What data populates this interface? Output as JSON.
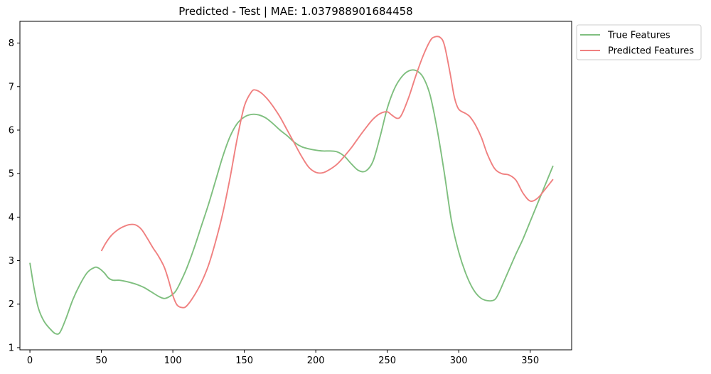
{
  "chart_data": {
    "type": "line",
    "title": "Predicted - Test | MAE: 1.037988901684458",
    "xlabel": "",
    "ylabel": "",
    "xlim": [
      -7,
      379
    ],
    "ylim": [
      0.95,
      8.5
    ],
    "xticks": [
      0,
      50,
      100,
      150,
      200,
      250,
      300,
      350
    ],
    "yticks": [
      1,
      2,
      3,
      4,
      5,
      6,
      7,
      8
    ],
    "grid": false,
    "legend_position": "outside-top-right",
    "series": [
      {
        "name": "True Features",
        "color": "#7fbf7f",
        "x": [
          0,
          3,
          6,
          10,
          15,
          18,
          21,
          25,
          30,
          35,
          40,
          45,
          48,
          52,
          55,
          58,
          62,
          66,
          70,
          75,
          80,
          85,
          90,
          94,
          98,
          102,
          106,
          110,
          115,
          120,
          125,
          130,
          135,
          140,
          145,
          150,
          155,
          160,
          165,
          170,
          175,
          180,
          185,
          190,
          195,
          200,
          205,
          210,
          215,
          220,
          225,
          230,
          235,
          240,
          245,
          250,
          255,
          260,
          265,
          270,
          275,
          280,
          285,
          290,
          295,
          300,
          305,
          310,
          315,
          320,
          325,
          328,
          332,
          336,
          340,
          345,
          350,
          355,
          360,
          366
        ],
        "values": [
          2.95,
          2.35,
          1.9,
          1.6,
          1.4,
          1.32,
          1.35,
          1.65,
          2.1,
          2.45,
          2.72,
          2.84,
          2.83,
          2.72,
          2.6,
          2.55,
          2.55,
          2.53,
          2.5,
          2.45,
          2.38,
          2.28,
          2.18,
          2.13,
          2.18,
          2.3,
          2.55,
          2.85,
          3.3,
          3.8,
          4.3,
          4.85,
          5.4,
          5.85,
          6.15,
          6.3,
          6.36,
          6.35,
          6.28,
          6.15,
          6.0,
          5.87,
          5.72,
          5.62,
          5.57,
          5.54,
          5.52,
          5.52,
          5.5,
          5.4,
          5.22,
          5.07,
          5.06,
          5.28,
          5.85,
          6.5,
          6.95,
          7.22,
          7.36,
          7.37,
          7.22,
          6.8,
          6.0,
          5.0,
          3.9,
          3.2,
          2.7,
          2.35,
          2.15,
          2.08,
          2.1,
          2.25,
          2.55,
          2.85,
          3.15,
          3.5,
          3.9,
          4.3,
          4.7,
          5.18
        ]
      },
      {
        "name": "Predicted Features",
        "color": "#f08080",
        "x": [
          50,
          53,
          57,
          62,
          66,
          70,
          74,
          78,
          82,
          86,
          90,
          94,
          97,
          100,
          103,
          107,
          110,
          115,
          120,
          125,
          130,
          135,
          140,
          145,
          150,
          155,
          158,
          162,
          166,
          170,
          175,
          180,
          185,
          190,
          195,
          200,
          205,
          210,
          215,
          220,
          225,
          230,
          235,
          240,
          245,
          250,
          253,
          257,
          260,
          265,
          270,
          275,
          280,
          283,
          287,
          290,
          294,
          297,
          300,
          305,
          308,
          312,
          316,
          320,
          325,
          330,
          335,
          340,
          345,
          350,
          355,
          360,
          366
        ],
        "values": [
          3.22,
          3.4,
          3.58,
          3.72,
          3.79,
          3.83,
          3.82,
          3.72,
          3.52,
          3.3,
          3.1,
          2.85,
          2.55,
          2.2,
          1.98,
          1.92,
          1.97,
          2.2,
          2.5,
          2.9,
          3.45,
          4.1,
          4.9,
          5.8,
          6.55,
          6.88,
          6.92,
          6.85,
          6.72,
          6.55,
          6.3,
          6.0,
          5.7,
          5.4,
          5.15,
          5.03,
          5.02,
          5.1,
          5.22,
          5.4,
          5.6,
          5.83,
          6.05,
          6.25,
          6.38,
          6.42,
          6.35,
          6.27,
          6.35,
          6.75,
          7.25,
          7.7,
          8.05,
          8.14,
          8.13,
          7.95,
          7.3,
          6.75,
          6.48,
          6.38,
          6.3,
          6.1,
          5.82,
          5.45,
          5.12,
          5.0,
          4.97,
          4.85,
          4.55,
          4.37,
          4.43,
          4.62,
          4.87
        ]
      }
    ]
  }
}
